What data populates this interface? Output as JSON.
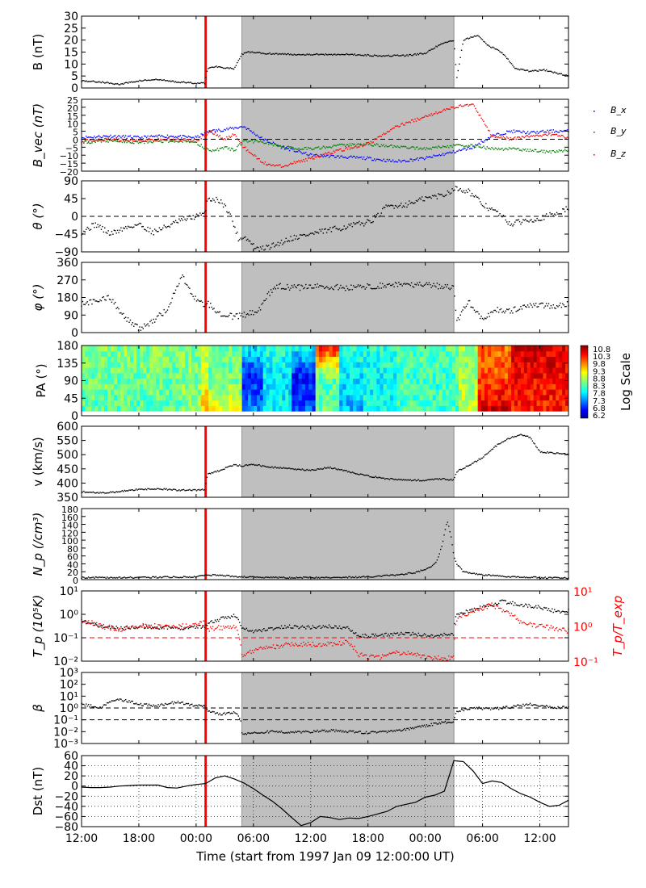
{
  "figure": {
    "xlabel": "Time (start from 1997 Jan 09 12:00:00 UT)",
    "x_ticks": [
      "12:00",
      "18:00",
      "00:00",
      "06:00",
      "12:00",
      "18:00",
      "00:00",
      "06:00",
      "12:00"
    ],
    "x_tick_hours": [
      0,
      6,
      12,
      18,
      24,
      30,
      36,
      42,
      48
    ],
    "x_range_hours": [
      0,
      51
    ],
    "shock_line_hour": 13.0,
    "shaded_interval_hours": [
      16.8,
      39.0
    ],
    "colors": {
      "shock_line": "#ff0000",
      "shade": "#bfbfbf",
      "main_series": "#000000",
      "bx": "#0000ff",
      "by": "#008000",
      "bz": "#ff0000",
      "ratio": "#ff0000"
    }
  },
  "chart_data": [
    {
      "type": "scatter",
      "ylabel": "B (nT)",
      "ylim": [
        0,
        30
      ],
      "y_ticks": [
        "30",
        "25",
        "20",
        "15",
        "10",
        "5",
        "0"
      ],
      "x": [
        0,
        2,
        4,
        6,
        8,
        10,
        12,
        12.9,
        13.2,
        14,
        15,
        16,
        16.8,
        17.5,
        19,
        22,
        25,
        28,
        31,
        34,
        36,
        37.5,
        39,
        39.3,
        40,
        41.5,
        42.5,
        44,
        45.5,
        47,
        48.5,
        50,
        51
      ],
      "values": [
        3,
        2.5,
        1.5,
        3,
        3.5,
        2.5,
        2,
        2,
        8,
        9,
        8.5,
        8,
        14,
        15,
        14.5,
        14,
        14,
        14,
        13.5,
        13.5,
        14.5,
        18,
        20,
        4,
        20,
        22,
        18,
        15,
        8,
        7,
        7.5,
        6,
        5
      ]
    },
    {
      "type": "scatter",
      "ylabel": "B_vec (nT)",
      "ylim": [
        -20,
        25
      ],
      "y_ticks": [
        "25",
        "20",
        "15",
        "10",
        "5",
        "0",
        "−5",
        "−10",
        "−15",
        "−20"
      ],
      "dashed_zero": true,
      "series": [
        {
          "name": "B_x",
          "x": [
            0,
            3,
            6,
            9,
            12,
            13.5,
            15,
            16,
            17,
            19,
            21,
            24,
            27,
            30,
            33,
            36,
            39,
            41,
            43,
            45,
            47,
            49,
            51
          ],
          "values": [
            1,
            2,
            1,
            2,
            1,
            5,
            6,
            7,
            8,
            0,
            -5,
            -10,
            -11,
            -12,
            -14,
            -12,
            -8,
            -5,
            2,
            5,
            4,
            5,
            5
          ]
        },
        {
          "name": "B_y",
          "x": [
            0,
            3,
            6,
            9,
            12,
            13.5,
            15,
            16,
            17,
            19,
            21,
            24,
            27,
            30,
            33,
            36,
            39,
            41,
            43,
            45,
            47,
            49,
            51
          ],
          "values": [
            -2,
            -1,
            -2,
            -1,
            -2,
            -8,
            -5,
            -7,
            -1,
            -2,
            -5,
            -6,
            -4,
            -3,
            -5,
            -6,
            -4,
            -4,
            -6,
            -6,
            -7,
            -8,
            -7
          ]
        },
        {
          "name": "B_z",
          "x": [
            0,
            3,
            6,
            9,
            12,
            13.5,
            15,
            16,
            17,
            19,
            21,
            24,
            27,
            30,
            33,
            36,
            39,
            41,
            43,
            45,
            47,
            49,
            51
          ],
          "values": [
            -1,
            0,
            -1,
            0,
            -1,
            5,
            0,
            3,
            -5,
            -15,
            -17,
            -12,
            -7,
            -3,
            8,
            14,
            20,
            22,
            2,
            0,
            2,
            3,
            1
          ]
        }
      ],
      "legend": [
        "B_x",
        "B_y",
        "B_z"
      ],
      "legend_position": "right"
    },
    {
      "type": "scatter",
      "ylabel": "θ (°)",
      "ylim": [
        -90,
        90
      ],
      "y_ticks": [
        "90",
        "45",
        "0",
        "−45",
        "−90"
      ],
      "dashed_zero": true,
      "x": [
        0,
        1.5,
        3,
        4.5,
        6,
        7.5,
        9,
        10.5,
        12,
        12.9,
        13.2,
        14.5,
        15.5,
        16.5,
        17,
        18.5,
        20,
        22,
        24,
        26,
        28,
        30,
        31,
        32,
        34,
        36,
        38,
        39,
        39.3,
        40.5,
        42,
        43.5,
        45,
        46.5,
        48,
        49.5,
        51
      ],
      "values": [
        -40,
        -20,
        -45,
        -30,
        -20,
        -40,
        -25,
        -10,
        0,
        5,
        45,
        40,
        10,
        -60,
        -50,
        -85,
        -75,
        -55,
        -45,
        -35,
        -25,
        -15,
        0,
        25,
        30,
        45,
        55,
        70,
        70,
        65,
        30,
        10,
        -20,
        -10,
        -5,
        5,
        20
      ]
    },
    {
      "type": "scatter",
      "ylabel": "φ (°)",
      "ylim": [
        0,
        360
      ],
      "y_ticks": [
        "360",
        "270",
        "180",
        "90",
        "0"
      ],
      "x": [
        0,
        1.5,
        3,
        4.5,
        6,
        7.5,
        9,
        10.5,
        12,
        12.9,
        13.2,
        14.5,
        16,
        17,
        18.5,
        19.5,
        20.5,
        22,
        25,
        28,
        31,
        34,
        37,
        39,
        39.3,
        40.5,
        42,
        43.5,
        45,
        46.5,
        48,
        49.5,
        51
      ],
      "values": [
        150,
        160,
        180,
        80,
        20,
        60,
        120,
        290,
        170,
        140,
        150,
        100,
        80,
        90,
        110,
        190,
        240,
        230,
        235,
        230,
        240,
        250,
        240,
        230,
        50,
        160,
        70,
        120,
        110,
        140,
        140,
        130,
        150
      ]
    },
    {
      "type": "heatmap",
      "ylabel": "PA (°)",
      "ylim": [
        0,
        180
      ],
      "y_ticks": [
        "180",
        "135",
        "90",
        "45",
        "0"
      ],
      "colorbar_label": "Log Scale",
      "colorbar_ticks": [
        "10.8",
        "10.3",
        "9.8",
        "9.3",
        "8.8",
        "8.3",
        "7.8",
        "7.3",
        "6.8",
        "6.2"
      ],
      "colorbar_range": [
        6.2,
        10.8
      ],
      "time_blocks_hours": [
        [
          0,
          10.5
        ],
        [
          10.5,
          12.5
        ],
        [
          12.5,
          13.3
        ],
        [
          13.3,
          16.8
        ],
        [
          16.8,
          19
        ],
        [
          19,
          22
        ],
        [
          22,
          24.5
        ],
        [
          24.5,
          27
        ],
        [
          27,
          29.5
        ],
        [
          29.5,
          33
        ],
        [
          33,
          39.5
        ],
        [
          39.5,
          41.5
        ],
        [
          41.5,
          45
        ],
        [
          45,
          51
        ]
      ],
      "block_level_low_pa": [
        8.3,
        8.6,
        9.3,
        9.0,
        7.4,
        7.9,
        7.2,
        8.4,
        7.6,
        8.0,
        8.2,
        8.9,
        10.4,
        10.1
      ],
      "block_level_mid_pa": [
        8.4,
        8.5,
        8.9,
        8.4,
        6.9,
        7.8,
        6.8,
        8.3,
        7.8,
        7.9,
        8.2,
        8.6,
        9.9,
        10.2
      ],
      "block_level_high_pa": [
        8.5,
        8.5,
        8.7,
        8.4,
        7.8,
        8.1,
        7.9,
        10.1,
        8.1,
        8.1,
        8.3,
        8.6,
        9.7,
        10.4
      ]
    },
    {
      "type": "scatter",
      "ylabel": "v (km/s)",
      "ylim": [
        350,
        600
      ],
      "y_ticks": [
        "600",
        "550",
        "500",
        "450",
        "400",
        "350"
      ],
      "x": [
        0,
        2,
        4,
        6,
        8,
        10,
        12,
        12.9,
        13.2,
        14.5,
        16,
        16.8,
        18,
        20,
        22,
        24,
        26,
        28,
        30,
        32,
        34,
        36,
        38,
        39,
        39.3,
        41,
        42,
        43,
        44,
        45,
        46,
        47,
        48,
        50,
        51
      ],
      "values": [
        370,
        365,
        370,
        378,
        380,
        375,
        375,
        378,
        430,
        445,
        465,
        460,
        465,
        455,
        450,
        445,
        455,
        440,
        425,
        415,
        410,
        410,
        415,
        410,
        440,
        470,
        490,
        520,
        545,
        560,
        570,
        560,
        510,
        505,
        500
      ]
    },
    {
      "type": "scatter",
      "ylabel": "N_p (/cm³)",
      "ylim": [
        0,
        180
      ],
      "y_ticks": [
        "180",
        "160",
        "140",
        "120",
        "100",
        "80",
        "60",
        "40",
        "20",
        "0"
      ],
      "x": [
        0,
        4,
        8,
        12,
        13.2,
        15,
        16.8,
        18,
        22,
        26,
        30,
        33,
        35,
        36.5,
        37.2,
        37.8,
        38.3,
        38.7,
        39,
        39.3,
        40,
        42,
        45,
        48,
        51
      ],
      "values": [
        5,
        5,
        6,
        7,
        12,
        10,
        7,
        6,
        5,
        5,
        7,
        12,
        18,
        30,
        45,
        90,
        150,
        110,
        60,
        40,
        20,
        12,
        7,
        5,
        4
      ]
    },
    {
      "type": "scatter",
      "ylabel": "T_p (10⁵K)",
      "y_scale": "log",
      "ylim": [
        0.01,
        10
      ],
      "y_ticks": [
        "10¹",
        "10⁰",
        "10⁻¹",
        "10⁻²"
      ],
      "right_ylabel": "T_p/T_exp",
      "right_ylim": [
        0.1,
        10
      ],
      "right_y_ticks": [
        "10¹",
        "10⁰",
        "10⁻¹"
      ],
      "dashed_level": 0.1,
      "series": [
        {
          "name": "T_p",
          "x": [
            0,
            2,
            4,
            6,
            8,
            10,
            12,
            12.9,
            13.2,
            14.5,
            16,
            16.8,
            18,
            20,
            22,
            24,
            26,
            28,
            29,
            31,
            33,
            35,
            37,
            39,
            39.3,
            41,
            43,
            44,
            46,
            48,
            50,
            51
          ],
          "values": [
            0.5,
            0.3,
            0.25,
            0.3,
            0.28,
            0.25,
            0.3,
            0.3,
            0.4,
            0.6,
            0.9,
            0.25,
            0.18,
            0.25,
            0.3,
            0.28,
            0.3,
            0.25,
            0.12,
            0.12,
            0.15,
            0.14,
            0.12,
            0.15,
            1.0,
            1.5,
            2.5,
            3.5,
            2.5,
            2.0,
            1.2,
            1.5
          ]
        },
        {
          "name": "T_p/T_exp",
          "x": [
            0,
            2,
            4,
            6,
            8,
            10,
            12,
            12.9,
            13.2,
            14.5,
            16,
            16.8,
            18,
            20,
            22,
            24,
            26,
            28,
            29,
            31,
            33,
            35,
            37,
            39,
            39.3,
            41,
            43,
            44,
            46,
            48,
            50,
            51
          ],
          "values": [
            1.5,
            1.0,
            0.8,
            1.0,
            1.0,
            0.9,
            1.2,
            1.2,
            0.8,
            0.9,
            1.0,
            0.15,
            0.2,
            0.25,
            0.3,
            0.3,
            0.3,
            0.35,
            0.15,
            0.12,
            0.18,
            0.15,
            0.12,
            0.12,
            1.5,
            2.5,
            4.0,
            3.0,
            1.2,
            1.0,
            0.8,
            0.7
          ]
        }
      ]
    },
    {
      "type": "scatter",
      "ylabel": "β",
      "y_scale": "log",
      "ylim": [
        0.001,
        1000
      ],
      "y_ticks": [
        "10³",
        "10²",
        "10¹",
        "10⁰",
        "10⁻¹",
        "10⁻²",
        "10⁻³"
      ],
      "dashed_levels": [
        1,
        0.1
      ],
      "x": [
        0,
        2,
        4,
        6,
        8,
        10,
        12,
        12.9,
        13.2,
        14.5,
        16,
        16.8,
        18,
        20,
        22,
        24,
        26,
        28,
        30,
        32,
        34,
        36,
        38,
        39,
        39.3,
        41,
        43,
        45,
        47,
        48,
        50,
        51
      ],
      "values": [
        2,
        1,
        5,
        2,
        1.5,
        3,
        1.5,
        1.5,
        0.5,
        0.3,
        0.4,
        0.005,
        0.008,
        0.01,
        0.008,
        0.01,
        0.012,
        0.01,
        0.008,
        0.01,
        0.015,
        0.03,
        0.06,
        0.07,
        0.5,
        1.0,
        0.8,
        1.2,
        2.0,
        1.5,
        1.0,
        1.2
      ]
    },
    {
      "type": "line",
      "ylabel": "Dst (nT)",
      "ylim": [
        -80,
        60
      ],
      "y_ticks": [
        "60",
        "40",
        "20",
        "0",
        "−20",
        "−40",
        "−60",
        "−80"
      ],
      "grid": "dotted",
      "x": [
        0,
        1,
        2,
        3,
        4,
        5,
        6,
        7,
        8,
        9,
        10,
        11,
        12,
        13,
        14,
        15,
        16,
        17,
        18,
        19,
        20,
        21,
        22,
        23,
        24,
        25,
        26,
        27,
        28,
        29,
        30,
        31,
        32,
        33,
        34,
        35,
        36,
        37,
        38,
        39,
        40,
        41,
        42,
        43,
        44,
        45,
        46,
        47,
        48,
        49,
        50,
        51
      ],
      "values": [
        -2,
        -3,
        -3,
        -2,
        0,
        1,
        2,
        2,
        2,
        -3,
        -4,
        0,
        3,
        5,
        16,
        20,
        14,
        6,
        -5,
        -18,
        -30,
        -45,
        -62,
        -78,
        -72,
        -60,
        -62,
        -66,
        -63,
        -64,
        -60,
        -55,
        -50,
        -40,
        -36,
        -32,
        -22,
        -18,
        -10,
        50,
        48,
        30,
        5,
        10,
        7,
        -5,
        -15,
        -22,
        -32,
        -40,
        -38,
        -28
      ]
    }
  ]
}
